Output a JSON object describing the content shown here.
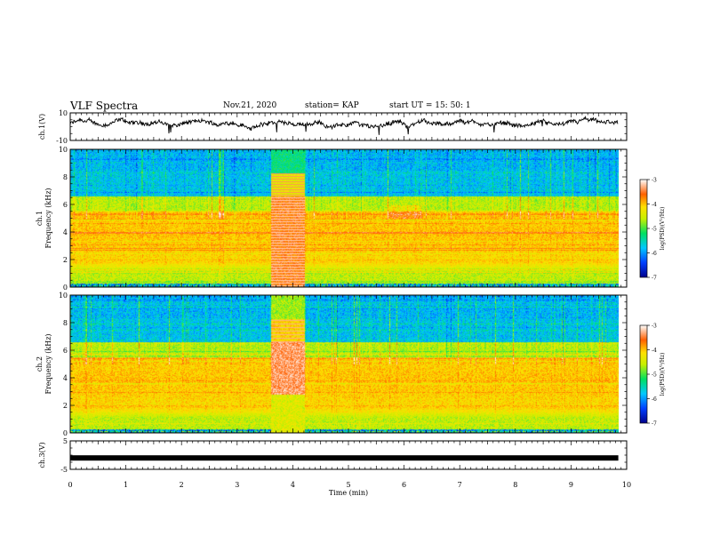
{
  "header": {
    "title": "VLF Spectra",
    "date": "Nov.21, 2020",
    "station": "station= KAP",
    "start": "start  UT =   15: 50: 1"
  },
  "chart_data": [
    {
      "type": "line",
      "name": "ch1-waveform",
      "ylabel": "ch.1(V)",
      "ylim": [
        -10,
        10
      ],
      "yticks": [
        "10",
        "-10"
      ],
      "x_range_min": [
        0,
        9.85
      ],
      "approx_baseline": 2,
      "approx_envelope": [
        -3,
        8
      ]
    },
    {
      "type": "heatmap",
      "name": "ch1-spectrogram",
      "ylabel": "ch.1\nFrequency (kHz)",
      "ylim": [
        0,
        10
      ],
      "yticks": [
        "0",
        "2",
        "4",
        "6",
        "8",
        "10"
      ],
      "x_range_min": [
        0,
        9.85
      ],
      "intense_band_khz": [
        2,
        5.5
      ],
      "burst_interval_min": [
        3.6,
        4.2
      ],
      "colorbar": {
        "label": "log(PSD)(V²/Hz)",
        "min": -7,
        "max": -3,
        "ticks": [
          "-3",
          "-4",
          "-5",
          "-6",
          "-7"
        ]
      }
    },
    {
      "type": "heatmap",
      "name": "ch2-spectrogram",
      "ylabel": "ch.2\nFrequency (kHz)",
      "ylim": [
        0,
        10
      ],
      "yticks": [
        "0",
        "2",
        "4",
        "6",
        "8",
        "10"
      ],
      "x_range_min": [
        0,
        9.85
      ],
      "intense_band_khz": [
        2,
        5.5
      ],
      "burst_interval_min": [
        3.6,
        4.2
      ],
      "colorbar": {
        "label": "log(PSD)(V²/Hz)",
        "min": -7,
        "max": -3,
        "ticks": [
          "-3",
          "-4",
          "-5",
          "-6",
          "-7"
        ]
      }
    },
    {
      "type": "line",
      "name": "ch3-waveform",
      "ylabel": "ch.3(V)",
      "ylim": [
        -5,
        5
      ],
      "yticks": [
        "5",
        "-5"
      ],
      "x_range_min": [
        0,
        9.85
      ],
      "approx_level": -1,
      "xlabel": "Time  (min)",
      "xticks": [
        "0",
        "1",
        "2",
        "3",
        "4",
        "5",
        "6",
        "7",
        "8",
        "9",
        "10"
      ]
    }
  ]
}
